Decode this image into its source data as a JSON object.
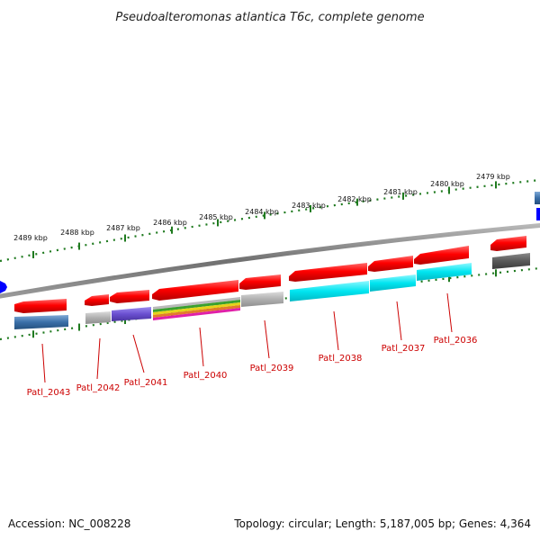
{
  "title": "Pseudoalteromonas atlantica T6c, complete genome",
  "footer": {
    "accession": "Accession: NC_008228",
    "summary": "Topology: circular; Length: 5,187,005 bp; Genes: 4,364"
  },
  "colors": {
    "gene_red": "#e8000a",
    "backbone": "#7a7a7a",
    "tick_green": "#1f7a1f",
    "label_red": "#cc0000",
    "feature_blue": "#3a6fa8",
    "feature_cyan": "#00e5f0",
    "feature_purple": "#6a4fd0",
    "feature_grey": "#b0b0b0",
    "feature_darkgrey": "#5a5a5a",
    "marker_blue": "#0000ff"
  },
  "scale_labels": [
    "2489 kbp",
    "2488 kbp",
    "2487 kbp",
    "2486 kbp",
    "2485 kbp",
    "2484 kbp",
    "2483 kbp",
    "2482 kbp",
    "2481 kbp",
    "2480 kbp",
    "2479 kbp"
  ],
  "gene_labels": [
    "Patl_2043",
    "Patl_2042",
    "Patl_2041",
    "Patl_2040",
    "Patl_2039",
    "Patl_2038",
    "Patl_2037",
    "Patl_2036"
  ]
}
